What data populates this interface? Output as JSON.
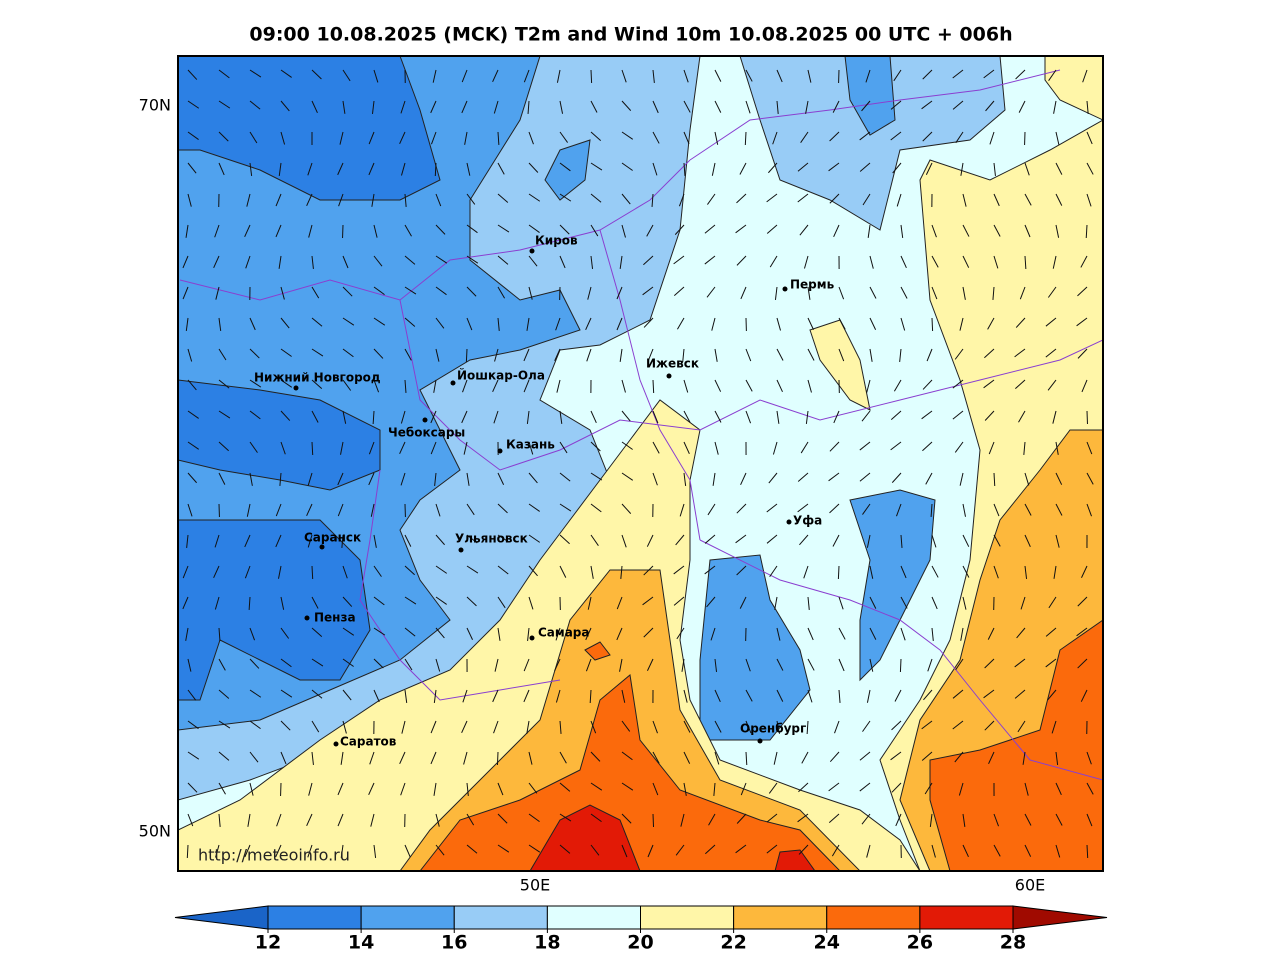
{
  "title": "09:00 10.08.2025 (MCK) T2m and Wind 10m 10.08.2025 00 UTC + 006h",
  "map": {
    "lat_labels": [
      "70N",
      "50N"
    ],
    "lon_labels": [
      "50E",
      "60E"
    ],
    "credit": "http://meteoinfo.ru",
    "cities": [
      "Киров",
      "Пермь",
      "Нижний Новгород",
      "Йошкар-Ола",
      "Ижевск",
      "Чебоксары",
      "Казань",
      "Уфа",
      "Саранск",
      "Ульяновск",
      "Самара",
      "Пенза",
      "Оренбург",
      "Саратов"
    ]
  },
  "colorbar": {
    "ticks": [
      12,
      14,
      16,
      18,
      20,
      22,
      24,
      26,
      28
    ],
    "colors": [
      "#1a64c8",
      "#2c80e4",
      "#50a2ee",
      "#98ccf6",
      "#e0ffff",
      "#fff6a8",
      "#fdb83c",
      "#fb6a0c",
      "#e21a06",
      "#a00a00"
    ]
  }
}
